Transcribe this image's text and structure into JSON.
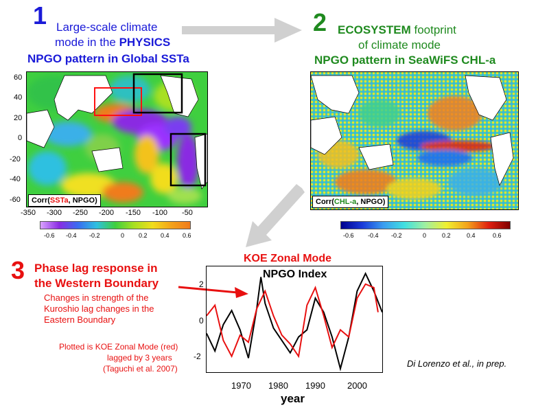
{
  "panel1": {
    "number": "1",
    "line1": "Large-scale climate",
    "line2_prefix": "mode in the ",
    "line2_bold": "PHYSICS",
    "subtitle": "NPGO pattern in Global SSTa",
    "corr_label": {
      "prefix": "Corr(",
      "var": "SSTa",
      "suffix": ", NPGO)"
    },
    "y_ticks": [
      "60",
      "40",
      "20",
      "0",
      "-20",
      "-40",
      "-60"
    ],
    "x_ticks": [
      "-350",
      "-300",
      "-250",
      "-200",
      "-150",
      "-100",
      "-50"
    ],
    "colorbar_ticks": [
      "-0.6",
      "-0.4",
      "-0.2",
      "0",
      "0.2",
      "0.4",
      "0.6"
    ]
  },
  "panel2": {
    "number": "2",
    "line1_bold": "ECOSYSTEM",
    "line1_rest": " footprint",
    "line2": "of climate mode",
    "subtitle": "NPGO pattern in SeaWiFS CHL-a",
    "corr_label": {
      "prefix": "Corr(",
      "var": "CHL-a",
      "suffix": ", NPGO)"
    },
    "colorbar_ticks": [
      "-0.6",
      "-0.4",
      "-0.2",
      "0",
      "0.2",
      "0.4",
      "0.6"
    ]
  },
  "panel3": {
    "number": "3",
    "heading_line1": "Phase lag response in",
    "heading_line2": "the Western Boundary",
    "desc_line1": "Changes in strength of the",
    "desc_line2": "Kuroshio lag changes in the",
    "desc_line3": "Eastern Boundary",
    "note_line1": "Plotted is KOE Zonal Mode (red)",
    "note_line2": "lagged by 3 years",
    "note_line3": "(Taguchi et al. 2007)",
    "citation": "Di Lorenzo et al., in prep.",
    "chart_title_red": "KOE Zonal Mode",
    "chart_title_black": "NPGO Index",
    "xlabel": "year"
  },
  "chart_data": {
    "type": "line",
    "x_ticks": [
      "1970",
      "1980",
      "1990",
      "2000"
    ],
    "y_ticks": [
      "2",
      "0",
      "-2"
    ],
    "xlim": [
      1963,
      2005
    ],
    "ylim": [
      -3,
      3
    ],
    "series": [
      {
        "name": "NPGO Index",
        "color": "#000000",
        "x": [
          1963,
          1965,
          1967,
          1969,
          1971,
          1973,
          1975,
          1976,
          1977,
          1979,
          1981,
          1983,
          1985,
          1987,
          1989,
          1991,
          1993,
          1995,
          1997,
          1999,
          2001,
          2003,
          2005
        ],
        "values": [
          -0.8,
          -1.8,
          -0.3,
          0.5,
          -0.6,
          -2.2,
          0.6,
          2.4,
          0.9,
          -0.5,
          -1.2,
          -1.9,
          -1.0,
          -0.6,
          1.2,
          0.4,
          -1.0,
          -2.8,
          -1.0,
          1.6,
          2.6,
          1.6,
          0.4
        ]
      },
      {
        "name": "KOE Zonal Mode",
        "color": "#e81010",
        "x": [
          1963,
          1965,
          1967,
          1969,
          1971,
          1973,
          1975,
          1977,
          1979,
          1981,
          1983,
          1985,
          1987,
          1989,
          1991,
          1993,
          1995,
          1997,
          1999,
          2001,
          2003,
          2004
        ],
        "values": [
          0.2,
          0.8,
          -1.2,
          -2.1,
          -0.9,
          -1.3,
          0.6,
          1.6,
          0.2,
          -0.9,
          -1.4,
          -2.1,
          0.8,
          1.8,
          0.2,
          -1.6,
          -0.6,
          -1.0,
          1.2,
          2.0,
          1.8,
          0.4
        ]
      }
    ]
  },
  "colors": {
    "blue": "#1a1ad8",
    "green": "#1f8a1f",
    "red": "#e81010",
    "arrow": "#cfcfcf"
  }
}
